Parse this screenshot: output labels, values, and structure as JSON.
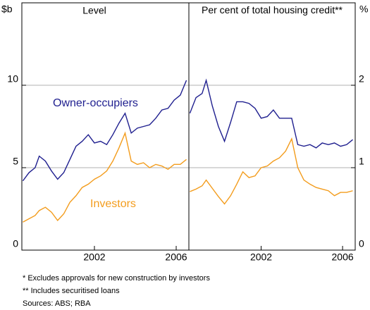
{
  "chart_data": [
    {
      "type": "line",
      "title": "Level",
      "ylabel": "$b",
      "x": [
        1998.5,
        1998.8,
        1999.1,
        1999.3,
        1999.6,
        1999.9,
        2000.2,
        2000.5,
        2000.8,
        2001.1,
        2001.4,
        2001.7,
        2002.0,
        2002.3,
        2002.6,
        2002.9,
        2003.2,
        2003.5,
        2003.8,
        2004.1,
        2004.4,
        2004.7,
        2005.0,
        2005.3,
        2005.6,
        2005.9,
        2006.2,
        2006.5
      ],
      "series": [
        {
          "name": "Owner-occupiers",
          "color": "#1f1f8f",
          "values": [
            4.2,
            4.7,
            5.0,
            5.7,
            5.4,
            4.8,
            4.3,
            4.7,
            5.5,
            6.3,
            6.6,
            7.0,
            6.5,
            6.6,
            6.4,
            7.0,
            7.7,
            8.3,
            7.1,
            7.4,
            7.5,
            7.6,
            8.0,
            8.5,
            8.6,
            9.1,
            9.4,
            10.3
          ]
        },
        {
          "name": "Investors",
          "color": "#f39c1c",
          "values": [
            1.7,
            1.9,
            2.1,
            2.4,
            2.6,
            2.3,
            1.8,
            2.2,
            2.9,
            3.3,
            3.8,
            4.0,
            4.3,
            4.5,
            4.8,
            5.4,
            6.2,
            7.1,
            5.4,
            5.2,
            5.3,
            5.0,
            5.2,
            5.1,
            4.9,
            5.2,
            5.2,
            5.5
          ]
        }
      ],
      "xlim": [
        1998.45,
        2006.62
      ],
      "xticks": [
        2002,
        2006
      ],
      "ylim": [
        0,
        15
      ],
      "yticks": [
        0,
        5,
        10
      ],
      "grid": true
    },
    {
      "type": "line",
      "title": "Per cent of total housing credit**",
      "ylabel": "%",
      "x": [
        1998.5,
        1998.8,
        1999.1,
        1999.3,
        1999.6,
        1999.9,
        2000.2,
        2000.5,
        2000.8,
        2001.1,
        2001.4,
        2001.7,
        2002.0,
        2002.3,
        2002.6,
        2002.9,
        2003.2,
        2003.5,
        2003.8,
        2004.1,
        2004.4,
        2004.7,
        2005.0,
        2005.3,
        2005.6,
        2005.9,
        2006.2,
        2006.5
      ],
      "series": [
        {
          "color": "#1f1f8f",
          "values": [
            1.66,
            1.85,
            1.9,
            2.06,
            1.75,
            1.5,
            1.32,
            1.55,
            1.8,
            1.8,
            1.78,
            1.72,
            1.6,
            1.62,
            1.7,
            1.6,
            1.6,
            1.6,
            1.28,
            1.26,
            1.28,
            1.24,
            1.3,
            1.28,
            1.3,
            1.26,
            1.28,
            1.34
          ]
        },
        {
          "color": "#f39c1c",
          "values": [
            0.71,
            0.74,
            0.78,
            0.85,
            0.75,
            0.65,
            0.56,
            0.66,
            0.8,
            0.95,
            0.88,
            0.9,
            1.0,
            1.02,
            1.08,
            1.12,
            1.2,
            1.35,
            1.0,
            0.85,
            0.8,
            0.76,
            0.74,
            0.72,
            0.66,
            0.7,
            0.7,
            0.72
          ]
        }
      ],
      "xlim": [
        1998.45,
        2006.62
      ],
      "xticks": [
        2002,
        2006
      ],
      "ylim": [
        0,
        3
      ],
      "yticks": [
        0,
        1,
        2
      ],
      "grid": true
    }
  ],
  "notes": [
    "*  Excludes approvals for new construction by investors",
    "** Includes securitised loans",
    "Sources: ABS; RBA"
  ]
}
